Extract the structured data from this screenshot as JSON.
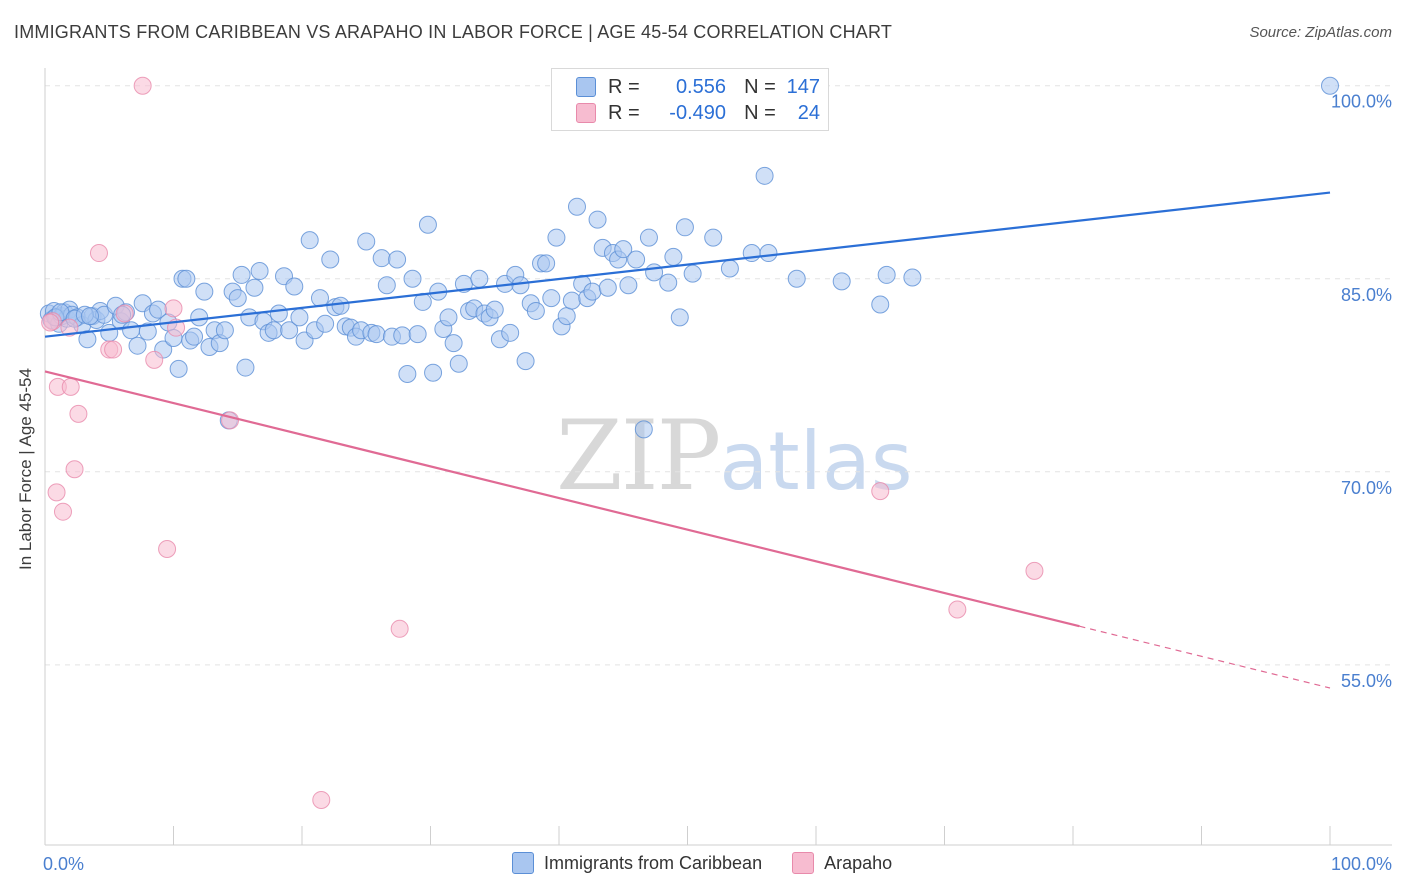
{
  "title": "IMMIGRANTS FROM CARIBBEAN VS ARAPAHO IN LABOR FORCE | AGE 45-54 CORRELATION CHART",
  "source": "Source: ZipAtlas.com",
  "watermark": {
    "zip": "ZIP",
    "atlas": "atlas"
  },
  "legend_top": {
    "rows": [
      {
        "r_label": "R =",
        "r_value": "0.556",
        "n_label": "N =",
        "n_value": "147"
      },
      {
        "r_label": "R =",
        "r_value": "-0.490",
        "n_label": "N =",
        "n_value": "24"
      }
    ]
  },
  "chart_data": {
    "type": "scatter",
    "title": "IMMIGRANTS FROM CARIBBEAN VS ARAPAHO IN LABOR FORCE | AGE 45-54 CORRELATION CHART",
    "xlabel": "",
    "ylabel": "In Labor Force | Age 45-54",
    "xlim": [
      0,
      100
    ],
    "ylim": [
      41,
      102
    ],
    "x_tick_labels": [
      "0.0%",
      "100.0%"
    ],
    "y_ticks": [
      55,
      70,
      85,
      100
    ],
    "y_tick_labels": [
      "55.0%",
      "70.0%",
      "85.0%",
      "100.0%"
    ],
    "grid": true,
    "colors": {
      "caribbean_fill": "#a9c6f0",
      "caribbean_edge": "#5b8fd6",
      "caribbean_line": "#2b6fd6",
      "arapaho_fill": "#f7bcd0",
      "arapaho_edge": "#e88aab",
      "arapaho_line": "#e06a94",
      "tick_label": "#4a7fcf"
    },
    "series": [
      {
        "name": "Immigrants from Caribbean",
        "trend": {
          "x0": 0,
          "y0": 80.5,
          "x1": 100,
          "y1": 91.7
        },
        "points": [
          [
            0.3,
            82.3
          ],
          [
            0.5,
            81.8
          ],
          [
            0.7,
            82.5
          ],
          [
            0.9,
            82.0
          ],
          [
            1.1,
            81.5
          ],
          [
            1.3,
            82.1
          ],
          [
            1.5,
            82.4
          ],
          [
            1.7,
            81.9
          ],
          [
            1.9,
            82.6
          ],
          [
            2.1,
            82.2
          ],
          [
            2.5,
            82.0
          ],
          [
            2.9,
            81.4
          ],
          [
            3.3,
            80.3
          ],
          [
            3.7,
            82.1
          ],
          [
            4.0,
            81.8
          ],
          [
            4.3,
            82.5
          ],
          [
            4.6,
            82.2
          ],
          [
            5.0,
            80.8
          ],
          [
            5.5,
            82.9
          ],
          [
            5.9,
            81.7
          ],
          [
            6.3,
            82.4
          ],
          [
            6.7,
            81.0
          ],
          [
            7.2,
            79.8
          ],
          [
            7.6,
            83.1
          ],
          [
            8.0,
            80.9
          ],
          [
            8.4,
            82.3
          ],
          [
            8.8,
            82.6
          ],
          [
            9.2,
            79.5
          ],
          [
            9.6,
            81.6
          ],
          [
            10.0,
            80.4
          ],
          [
            10.4,
            78.0
          ],
          [
            10.7,
            85.0
          ],
          [
            11.0,
            85.0
          ],
          [
            11.3,
            80.2
          ],
          [
            11.6,
            80.5
          ],
          [
            12.0,
            82.0
          ],
          [
            12.4,
            84.0
          ],
          [
            12.8,
            79.7
          ],
          [
            13.2,
            81.0
          ],
          [
            13.6,
            80.0
          ],
          [
            14.0,
            81.0
          ],
          [
            14.3,
            74.0
          ],
          [
            14.6,
            84.0
          ],
          [
            15.0,
            83.5
          ],
          [
            15.3,
            85.3
          ],
          [
            15.6,
            78.1
          ],
          [
            15.9,
            82.0
          ],
          [
            16.3,
            84.3
          ],
          [
            16.7,
            85.6
          ],
          [
            17.0,
            81.7
          ],
          [
            17.4,
            80.8
          ],
          [
            17.8,
            81.0
          ],
          [
            18.2,
            82.3
          ],
          [
            18.6,
            85.2
          ],
          [
            19.0,
            81.0
          ],
          [
            19.4,
            84.4
          ],
          [
            19.8,
            82.0
          ],
          [
            20.2,
            80.2
          ],
          [
            20.6,
            88.0
          ],
          [
            21.0,
            81.0
          ],
          [
            21.4,
            83.5
          ],
          [
            21.8,
            81.5
          ],
          [
            22.2,
            86.5
          ],
          [
            22.6,
            82.8
          ],
          [
            23.0,
            82.9
          ],
          [
            23.4,
            81.3
          ],
          [
            23.8,
            81.2
          ],
          [
            24.2,
            80.5
          ],
          [
            24.6,
            81.0
          ],
          [
            25.0,
            87.9
          ],
          [
            25.4,
            80.8
          ],
          [
            25.8,
            80.7
          ],
          [
            26.2,
            86.6
          ],
          [
            26.6,
            84.5
          ],
          [
            27.0,
            80.5
          ],
          [
            27.4,
            86.5
          ],
          [
            27.8,
            80.6
          ],
          [
            28.2,
            77.6
          ],
          [
            28.6,
            85.0
          ],
          [
            29.0,
            80.7
          ],
          [
            29.4,
            83.2
          ],
          [
            29.8,
            89.2
          ],
          [
            30.2,
            77.7
          ],
          [
            30.6,
            84.0
          ],
          [
            31.0,
            81.1
          ],
          [
            31.4,
            82.0
          ],
          [
            31.8,
            80.0
          ],
          [
            32.2,
            78.4
          ],
          [
            32.6,
            84.6
          ],
          [
            33.0,
            82.5
          ],
          [
            33.4,
            82.7
          ],
          [
            33.8,
            85.0
          ],
          [
            34.2,
            82.3
          ],
          [
            34.6,
            82.0
          ],
          [
            35.0,
            82.6
          ],
          [
            35.4,
            80.3
          ],
          [
            35.8,
            84.6
          ],
          [
            36.2,
            80.8
          ],
          [
            36.6,
            85.3
          ],
          [
            37.0,
            84.5
          ],
          [
            37.4,
            78.6
          ],
          [
            37.8,
            83.1
          ],
          [
            38.2,
            82.5
          ],
          [
            38.6,
            86.2
          ],
          [
            39.0,
            86.2
          ],
          [
            39.4,
            83.5
          ],
          [
            39.8,
            88.2
          ],
          [
            40.2,
            81.3
          ],
          [
            40.6,
            82.1
          ],
          [
            41.0,
            83.3
          ],
          [
            41.4,
            90.6
          ],
          [
            41.8,
            84.6
          ],
          [
            42.2,
            83.5
          ],
          [
            42.6,
            84.0
          ],
          [
            43.0,
            89.6
          ],
          [
            43.4,
            87.4
          ],
          [
            43.8,
            84.3
          ],
          [
            44.2,
            87.0
          ],
          [
            44.6,
            86.5
          ],
          [
            45.0,
            87.3
          ],
          [
            45.4,
            84.5
          ],
          [
            46.0,
            86.5
          ],
          [
            46.6,
            73.3
          ],
          [
            47.0,
            88.2
          ],
          [
            47.4,
            85.5
          ],
          [
            48.5,
            84.7
          ],
          [
            48.9,
            86.7
          ],
          [
            49.4,
            82.0
          ],
          [
            49.8,
            89.0
          ],
          [
            50.4,
            85.4
          ],
          [
            52.0,
            88.2
          ],
          [
            53.3,
            85.8
          ],
          [
            55.0,
            87.0
          ],
          [
            56.3,
            87.0
          ],
          [
            58.5,
            85.0
          ],
          [
            62.0,
            84.8
          ],
          [
            65.0,
            83.0
          ],
          [
            65.5,
            85.3
          ],
          [
            67.5,
            85.1
          ],
          [
            56.0,
            93.0
          ],
          [
            100.0,
            100.0
          ],
          [
            0.8,
            82.0
          ],
          [
            1.2,
            82.4
          ],
          [
            2.3,
            81.9
          ],
          [
            3.1,
            82.2
          ],
          [
            3.5,
            82.1
          ],
          [
            6.0,
            82.2
          ]
        ]
      },
      {
        "name": "Arapaho",
        "trend": {
          "x0": 0,
          "y0": 77.8,
          "x1": 80.5,
          "y1": 58.0,
          "dash_x1": 100,
          "dash_y1": 53.2
        },
        "points": [
          [
            0.6,
            81.7
          ],
          [
            0.9,
            68.4
          ],
          [
            1.0,
            76.6
          ],
          [
            1.4,
            66.9
          ],
          [
            1.9,
            81.2
          ],
          [
            2.0,
            76.6
          ],
          [
            2.3,
            70.2
          ],
          [
            2.6,
            74.5
          ],
          [
            4.2,
            87.0
          ],
          [
            5.0,
            79.5
          ],
          [
            5.3,
            79.5
          ],
          [
            6.2,
            82.3
          ],
          [
            7.6,
            100.0
          ],
          [
            8.5,
            78.7
          ],
          [
            9.5,
            64.0
          ],
          [
            10.0,
            82.7
          ],
          [
            10.2,
            81.2
          ],
          [
            14.4,
            74.0
          ],
          [
            21.5,
            44.5
          ],
          [
            27.6,
            57.8
          ],
          [
            65.0,
            68.5
          ],
          [
            71.0,
            59.3
          ],
          [
            77.0,
            62.3
          ],
          [
            0.4,
            81.6
          ]
        ]
      }
    ]
  },
  "legend_bottom": [
    {
      "label": "Immigrants from Caribbean"
    },
    {
      "label": "Arapaho"
    }
  ]
}
